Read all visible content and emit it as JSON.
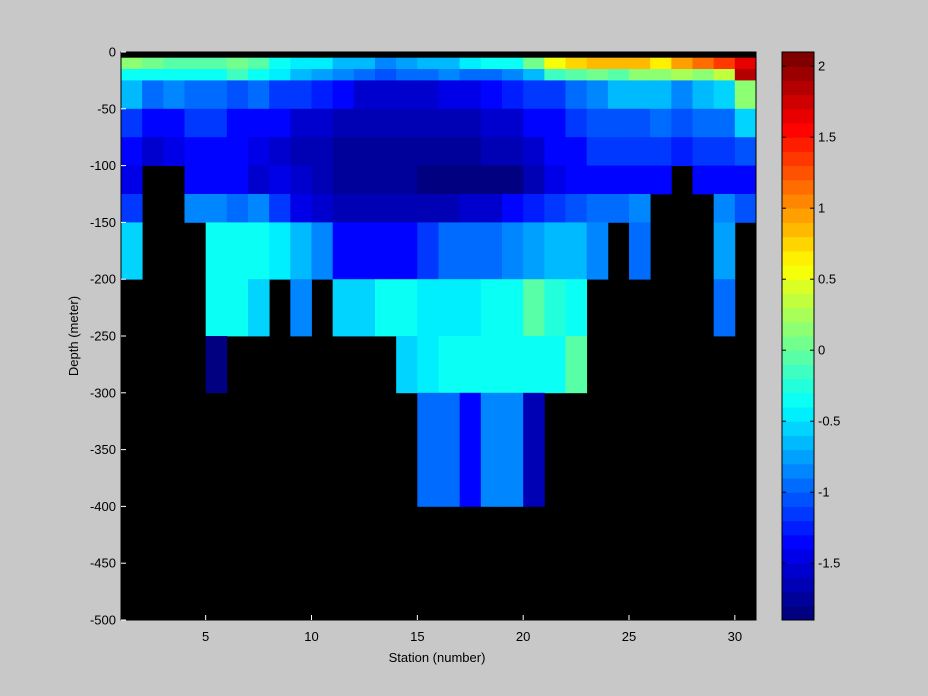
{
  "chart_data": {
    "type": "heatmap",
    "title": "",
    "xlabel": "Station (number)",
    "ylabel": "Depth (meter)",
    "xlim": [
      1,
      31
    ],
    "ylim": [
      -500,
      0
    ],
    "x_ticks": [
      5,
      10,
      15,
      20,
      25,
      30
    ],
    "y_ticks": [
      0,
      -50,
      -100,
      -150,
      -200,
      -250,
      -300,
      -350,
      -400,
      -450,
      -500
    ],
    "no_data_color": "#000000",
    "colorbar": {
      "colormap": "jet",
      "clim": [
        -1.9,
        2.1
      ],
      "ticks": [
        -1.5,
        -1,
        -0.5,
        0,
        0.5,
        1,
        1.5,
        2
      ],
      "levels": 40
    },
    "stations": [
      1,
      2,
      3,
      4,
      5,
      6,
      7,
      8,
      9,
      10,
      11,
      12,
      13,
      14,
      15,
      16,
      17,
      18,
      19,
      20,
      21,
      22,
      23,
      24,
      25,
      26,
      27,
      28,
      29,
      30
    ],
    "depth_bins": [
      {
        "top": 0,
        "bottom": -5
      },
      {
        "top": -5,
        "bottom": -15
      },
      {
        "top": -15,
        "bottom": -25
      },
      {
        "top": -25,
        "bottom": -50
      },
      {
        "top": -50,
        "bottom": -75
      },
      {
        "top": -75,
        "bottom": -100
      },
      {
        "top": -100,
        "bottom": -125
      },
      {
        "top": -125,
        "bottom": -150
      },
      {
        "top": -150,
        "bottom": -200
      },
      {
        "top": -200,
        "bottom": -250
      },
      {
        "top": -250,
        "bottom": -300
      },
      {
        "top": -300,
        "bottom": -400
      }
    ],
    "values": [
      [
        null,
        null,
        null,
        null,
        null,
        null,
        null,
        null,
        null,
        null,
        null,
        null,
        null,
        null,
        null,
        null,
        null,
        null,
        null,
        null,
        null,
        null,
        null,
        null,
        null,
        null,
        null,
        null,
        null,
        null
      ],
      [
        0.1,
        0.05,
        -0.05,
        -0.1,
        -0.1,
        0.0,
        -0.05,
        -0.4,
        -0.5,
        -0.5,
        -0.65,
        -0.65,
        -0.8,
        -0.75,
        -0.65,
        -0.6,
        -0.5,
        -0.35,
        -0.3,
        0.0,
        0.55,
        0.75,
        0.8,
        0.8,
        0.8,
        0.7,
        0.9,
        1.1,
        1.3,
        1.6
      ],
      [
        -0.3,
        -0.3,
        -0.3,
        -0.3,
        -0.3,
        -0.15,
        -0.3,
        -0.45,
        -0.65,
        -0.75,
        -0.8,
        -1.0,
        -1.05,
        -1.0,
        -0.95,
        -0.85,
        -0.95,
        -1.0,
        -0.85,
        -0.65,
        -0.2,
        -0.1,
        0.0,
        -0.05,
        0.1,
        0.1,
        0.2,
        0.15,
        0.35,
        1.85
      ],
      [
        -0.6,
        -1.0,
        -0.85,
        -0.95,
        -0.95,
        -1.05,
        -0.9,
        -1.1,
        -1.15,
        -1.25,
        -1.35,
        -1.5,
        -1.55,
        -1.55,
        -1.5,
        -1.45,
        -1.45,
        -1.35,
        -1.25,
        -1.2,
        -1.1,
        -0.9,
        -0.8,
        -0.7,
        -0.6,
        -0.6,
        -0.8,
        -0.6,
        -0.55,
        0.1
      ],
      [
        -1.1,
        -1.3,
        -1.3,
        -1.2,
        -1.2,
        -1.3,
        -1.3,
        -1.35,
        -1.5,
        -1.5,
        -1.6,
        -1.6,
        -1.6,
        -1.65,
        -1.6,
        -1.65,
        -1.65,
        -1.55,
        -1.5,
        -1.4,
        -1.3,
        -1.2,
        -1.05,
        -1.05,
        -1.05,
        -1.0,
        -1.05,
        -1.0,
        -0.95,
        -0.55
      ],
      [
        -1.3,
        -1.5,
        -1.45,
        -1.35,
        -1.35,
        -1.4,
        -1.45,
        -1.5,
        -1.6,
        -1.65,
        -1.7,
        -1.7,
        -1.7,
        -1.7,
        -1.7,
        -1.75,
        -1.75,
        -1.65,
        -1.65,
        -1.5,
        -1.35,
        -1.3,
        -1.2,
        -1.2,
        -1.2,
        -1.2,
        -1.25,
        -1.2,
        -1.2,
        -1.05
      ],
      [
        -1.45,
        null,
        null,
        -1.4,
        -1.35,
        -1.4,
        -1.5,
        -1.45,
        -1.55,
        -1.65,
        -1.75,
        -1.7,
        -1.7,
        -1.7,
        -1.8,
        -1.85,
        -1.9,
        -1.8,
        -1.8,
        -1.6,
        -1.45,
        -1.4,
        -1.3,
        -1.3,
        -1.3,
        -1.3,
        null,
        -1.3,
        -1.35,
        -1.4
      ],
      [
        -1.15,
        null,
        null,
        -0.85,
        -0.85,
        -1.0,
        -0.85,
        -1.2,
        -1.45,
        -1.55,
        -1.6,
        -1.6,
        -1.65,
        -1.65,
        -1.65,
        -1.6,
        -1.55,
        -1.5,
        -1.4,
        -1.25,
        -1.15,
        -1.05,
        -0.95,
        -0.95,
        -0.8,
        null,
        null,
        null,
        -0.85,
        -1.05
      ],
      [
        -0.55,
        null,
        null,
        null,
        -0.3,
        -0.3,
        -0.35,
        -0.45,
        -0.65,
        -0.8,
        -1.3,
        -1.3,
        -1.3,
        -1.3,
        -1.1,
        -1.0,
        -0.9,
        -0.9,
        -0.85,
        -0.75,
        -0.7,
        -0.7,
        -0.85,
        null,
        -1.0,
        null,
        null,
        null,
        -0.75,
        null
      ],
      [
        null,
        null,
        null,
        null,
        -0.4,
        -0.4,
        -0.55,
        null,
        -0.8,
        null,
        -0.55,
        -0.55,
        -0.4,
        -0.4,
        -0.5,
        -0.45,
        -0.45,
        -0.4,
        -0.4,
        -0.1,
        -0.25,
        -0.4,
        null,
        null,
        null,
        null,
        null,
        null,
        -1.0,
        null
      ],
      [
        null,
        null,
        null,
        null,
        -1.85,
        null,
        null,
        null,
        null,
        null,
        null,
        null,
        null,
        -0.55,
        -0.5,
        -0.4,
        -0.4,
        -0.4,
        -0.4,
        -0.4,
        -0.35,
        -0.1,
        null,
        null,
        null,
        null,
        null,
        null,
        null,
        null
      ],
      [
        null,
        null,
        null,
        null,
        null,
        null,
        null,
        null,
        null,
        null,
        null,
        null,
        null,
        null,
        -1.0,
        -1.0,
        -1.3,
        -0.85,
        -0.85,
        -1.65,
        null,
        null,
        null,
        null,
        null,
        null,
        null,
        null,
        null,
        null
      ]
    ]
  }
}
